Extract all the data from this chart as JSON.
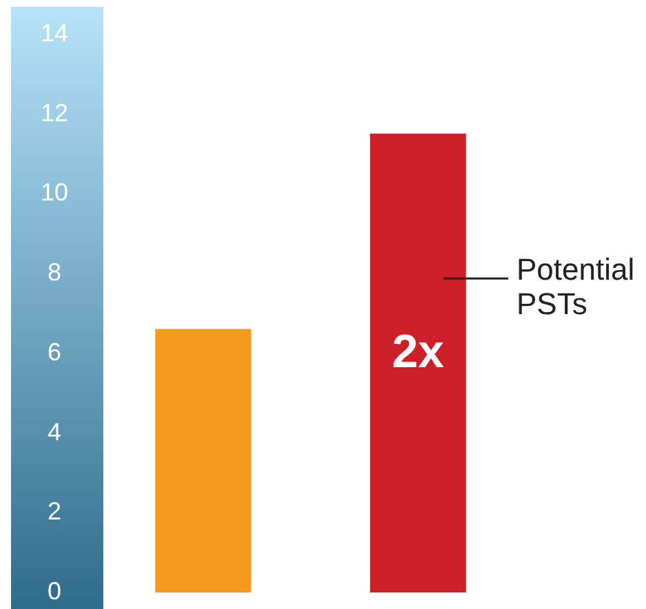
{
  "chart_data": {
    "type": "bar",
    "categories": [
      null,
      null
    ],
    "values": [
      6.6,
      11.5
    ],
    "colors": [
      "#f5991f",
      "#cc1f26"
    ],
    "ylim": [
      0,
      14
    ],
    "yticks": [
      0,
      2,
      4,
      6,
      8,
      10,
      12,
      14
    ],
    "tick_labels": "y",
    "grid": false,
    "legend": false,
    "annotations": [
      "2x",
      "Potential PSTs"
    ]
  }
}
